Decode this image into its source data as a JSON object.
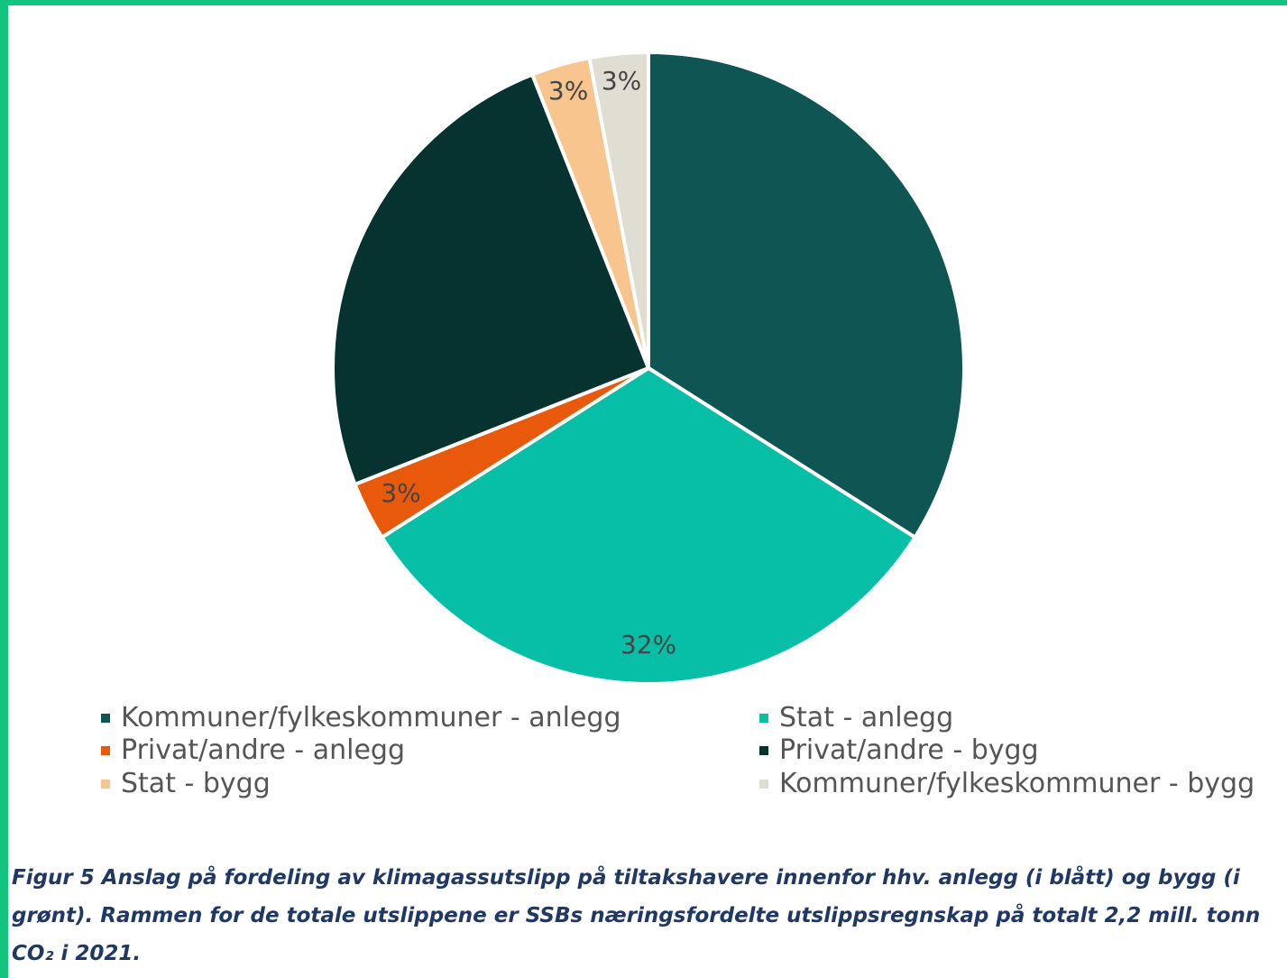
{
  "chart_data": {
    "type": "pie",
    "slices": [
      {
        "label": "Kommuner/fylkeskommuner - anlegg",
        "value": 34,
        "color": "#0e5553"
      },
      {
        "label": "Stat - anlegg",
        "value": 32,
        "color": "#07bfa6"
      },
      {
        "label": "Privat/andre - anlegg",
        "value": 3,
        "color": "#e8590c"
      },
      {
        "label": "Privat/andre - bygg",
        "value": 25,
        "color": "#063330"
      },
      {
        "label": "Stat - bygg",
        "value": 3,
        "color": "#f7c58d"
      },
      {
        "label": "Kommuner/fylkeskommuner - bygg",
        "value": 3,
        "color": "#e0ddd2"
      }
    ],
    "data_labels": [
      "",
      "32%",
      "3%",
      "",
      "3%",
      "3%"
    ],
    "legend_position": "bottom",
    "legend": [
      "Kommuner/fylkeskommuner - anlegg",
      "Stat - anlegg",
      "Privat/andre - anlegg",
      "Privat/andre - bygg",
      "Stat - bygg",
      "Kommuner/fylkeskommuner - bygg"
    ]
  },
  "caption": {
    "line1": "Figur 5 Anslag på fordeling av klimagassutslipp på tiltakshavere innenfor hhv. anlegg (i blått) og bygg (i",
    "line2": "grønt). Rammen for de totale utslippene er SSBs næringsfordelte utslippsregnskap på totalt 2,2 mill. tonn",
    "line3": "CO₂ i 2021."
  },
  "frame_color": "#12c47e"
}
